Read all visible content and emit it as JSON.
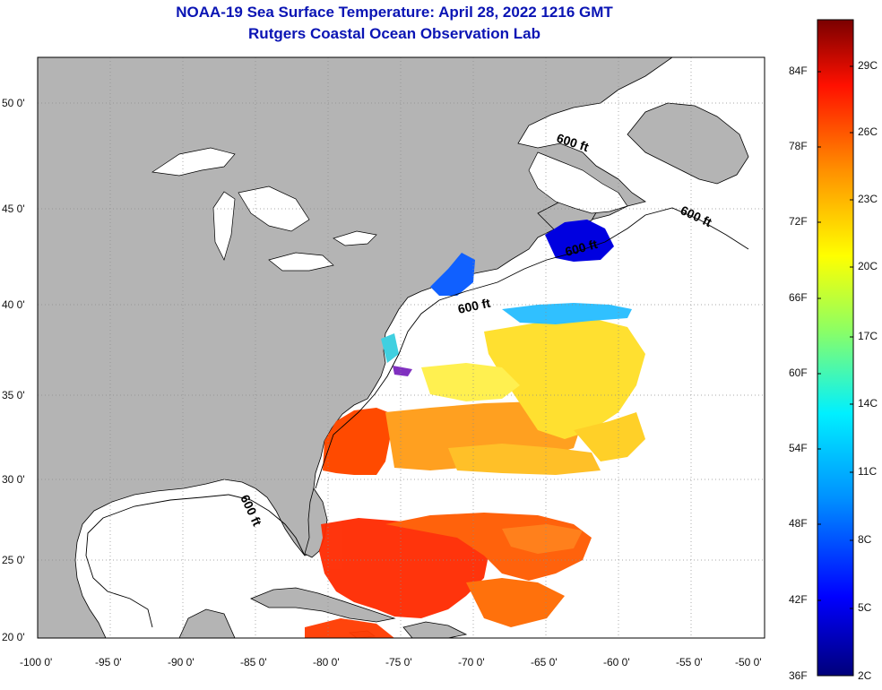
{
  "title": {
    "line1": "NOAA-19 Sea Surface Temperature:  April 28, 2022 1216 GMT",
    "line2": "Rutgers Coastal Ocean Observation Lab"
  },
  "map": {
    "lat_labels": [
      "50 0'",
      "45 0'",
      "40 0'",
      "35 0'",
      "30 0'",
      "25 0'",
      "20 0'"
    ],
    "lon_labels": [
      "-100 0'",
      "-95 0'",
      "-90 0'",
      "-85 0'",
      "-80 0'",
      "-75 0'",
      "-70 0'",
      "-65 0'",
      "-60 0'",
      "-55 0'",
      "-50 0'"
    ],
    "contour_label": "600 ft",
    "colors": {
      "land": "#b4b4b4",
      "ocean_no_data": "#ffffff",
      "grid": "#8c8c8c"
    }
  },
  "colorbar": {
    "f_labels": [
      "84F",
      "78F",
      "72F",
      "66F",
      "60F",
      "54F",
      "48F",
      "42F",
      "36F"
    ],
    "c_labels": [
      "29C",
      "26C",
      "23C",
      "20C",
      "17C",
      "14C",
      "11C",
      "8C",
      "5C",
      "2C"
    ],
    "colors": [
      "#00007a",
      "#0000ff",
      "#0090ff",
      "#00f0ff",
      "#90ff60",
      "#ffff00",
      "#ff9000",
      "#ff1000",
      "#7a0000"
    ]
  }
}
